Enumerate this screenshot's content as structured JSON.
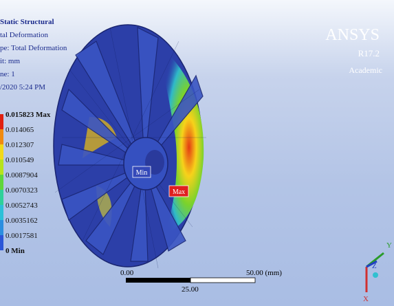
{
  "header": {
    "lines": [
      "Static Structural",
      "tal Deformation",
      "pe: Total Deformation",
      "it: mm",
      "ne: 1",
      "/2020 5:24 PM"
    ]
  },
  "legend": {
    "levels": [
      "0.015823 Max",
      "0.014065",
      "0.012307",
      "0.010549",
      "0.0087904",
      "0.0070323",
      "0.0052743",
      "0.0035162",
      "0.0017581",
      "0 Min"
    ]
  },
  "probes": {
    "min": "Min",
    "max": "Max"
  },
  "brand": {
    "name": "ANSYS",
    "version": "R17.2",
    "edition": "Academic"
  },
  "scale": {
    "start": "0.00",
    "end": "50.00 (mm)",
    "middle": "25.00"
  },
  "triad": {
    "y": "Y",
    "z": "Z",
    "x": "X"
  }
}
